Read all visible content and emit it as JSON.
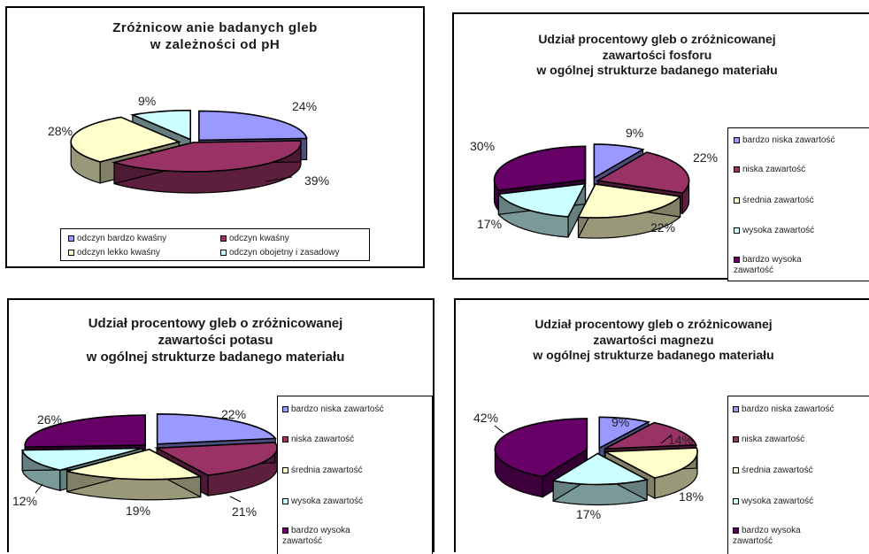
{
  "chart_data": [
    {
      "type": "pie",
      "title_lines": [
        "Zróżnicow anie badanych gleb",
        "w zależności od pH"
      ],
      "categories": [
        "odczyn bardzo kwaśny",
        "odczyn kwaśny",
        "odczyn lekko kwaśny",
        "odczyn obojetny i zasadowy"
      ],
      "values": [
        24,
        39,
        28,
        9
      ],
      "value_labels": [
        "24%",
        "39%",
        "28%",
        "9%"
      ],
      "colors": [
        "#9999ff",
        "#993366",
        "#ffffcc",
        "#ccffff"
      ],
      "legend_position": "bottom"
    },
    {
      "type": "pie",
      "title_lines": [
        "Udział procentowy gleb o zróżnicowanej",
        "zawartości fosforu",
        "w ogólnej strukturze badanego materiału"
      ],
      "categories": [
        "bardzo niska zawartość",
        "niska zawartość",
        "średnia zawartość",
        "wysoka zawartość",
        "bardzo wysoka zawartość"
      ],
      "values": [
        9,
        22,
        22,
        17,
        30
      ],
      "value_labels": [
        "9%",
        "22%",
        "22%",
        "17%",
        "30%"
      ],
      "colors": [
        "#9999ff",
        "#993366",
        "#ffffcc",
        "#ccffff",
        "#660066"
      ],
      "legend_position": "right"
    },
    {
      "type": "pie",
      "title_lines": [
        "Udział procentowy gleb o zróżnicowanej",
        "zawartości potasu",
        "w ogólnej strukturze badanego materiału"
      ],
      "categories": [
        "bardzo niska zawartość",
        "niska zawartość",
        "średnia zawartość",
        "wysoka zawartość",
        "bardzo wysoka zawartość"
      ],
      "values": [
        22,
        21,
        19,
        12,
        26
      ],
      "value_labels": [
        "22%",
        "21%",
        "19%",
        "12%",
        "26%"
      ],
      "colors": [
        "#9999ff",
        "#993366",
        "#ffffcc",
        "#ccffff",
        "#660066"
      ],
      "legend_position": "right"
    },
    {
      "type": "pie",
      "title_lines": [
        "Udział procentowy gleb o zróżnicowanej",
        "zawartości magnezu",
        "w ogólnej strukturze badanego materiału"
      ],
      "categories": [
        "bardzo niska zawartość",
        "niska zawartość",
        "średnia zawartość",
        "wysoka zawartość",
        "bardzo wysoka zawartość"
      ],
      "values": [
        9,
        14,
        18,
        17,
        42
      ],
      "value_labels": [
        "9%",
        "14%",
        "18%",
        "17%",
        "42%"
      ],
      "colors": [
        "#9999ff",
        "#993366",
        "#ffffcc",
        "#ccffff",
        "#660066"
      ],
      "legend_position": "right"
    }
  ]
}
